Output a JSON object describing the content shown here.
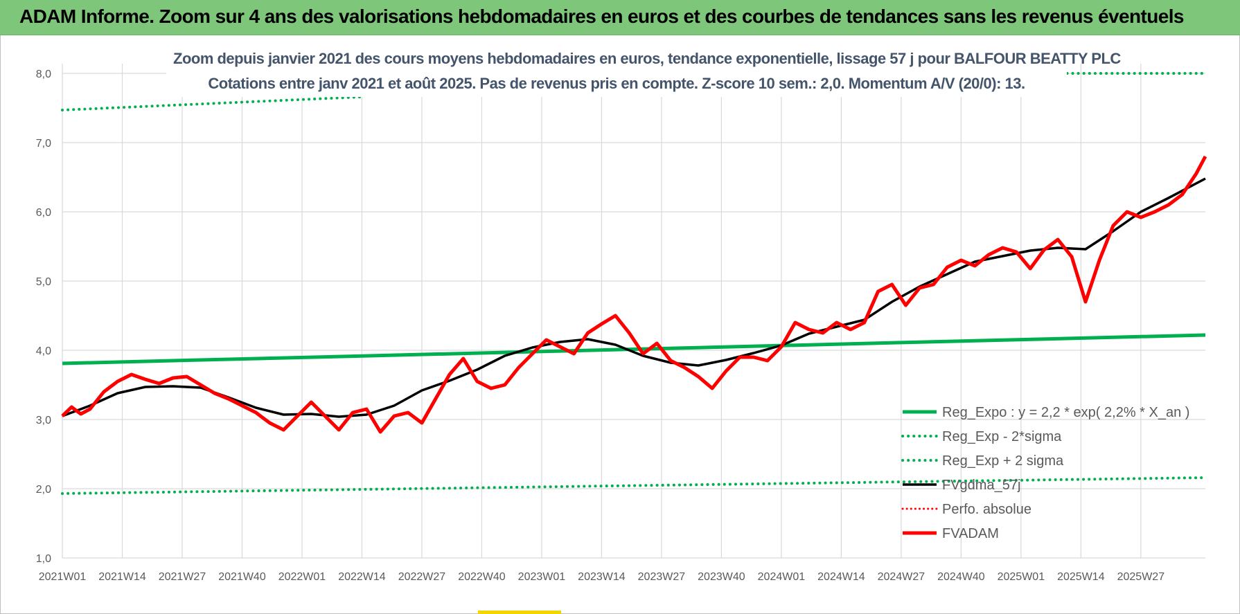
{
  "header": {
    "banner_title": "ADAM Informe. Zoom sur 4 ans des valorisations hebdomadaires en euros et des courbes de tendances sans les revenus éventuels"
  },
  "chart_data": {
    "type": "line",
    "title": "Zoom depuis janvier 2021 des cours moyens hebdomadaires en euros, tendance exponentielle, lissage 57 j pour BALFOUR BEATTY PLC",
    "subtitle": "Cotations entre janv 2021 et août 2025.  Pas de revenus pris en compte. Z-score 10 sem.: 2,0. Momentum A/V (20/0): 13.",
    "x_tick_labels": [
      "2021W01",
      "2021W14",
      "2021W27",
      "2021W40",
      "2022W01",
      "2022W14",
      "2022W27",
      "2022W40",
      "2023W01",
      "2023W14",
      "2023W27",
      "2023W40",
      "2024W01",
      "2024W14",
      "2024W27",
      "2024W40",
      "2025W01",
      "2025W14",
      "2025W27"
    ],
    "x_range_weeks": [
      0,
      248
    ],
    "y_ticks": [
      "1,0",
      "2,0",
      "3,0",
      "4,0",
      "5,0",
      "6,0",
      "7,0",
      "8,0"
    ],
    "ylim": [
      1.0,
      8.0
    ],
    "grid": true,
    "legend_position": "bottom-right",
    "colors": {
      "green": "#00b050",
      "black": "#000000",
      "red": "#ff0000",
      "grid": "#d9d9d9"
    },
    "series": [
      {
        "name": "Reg_Expo : y = 2,2 * exp( 2,2% *  X_an )",
        "style": "solid",
        "color": "#00b050",
        "x": [
          0,
          248
        ],
        "values": [
          3.81,
          4.22
        ]
      },
      {
        "name": "Reg_Exp - 2*sigma",
        "style": "dotted",
        "color": "#00b050",
        "x": [
          0,
          248
        ],
        "values": [
          1.93,
          2.16
        ]
      },
      {
        "name": "Reg_Exp + 2 sigma",
        "style": "dotted",
        "color": "#00b050",
        "x": [
          0,
          65,
          218,
          248
        ],
        "values": [
          7.47,
          7.66,
          8.0,
          8.0
        ],
        "visible_segments": [
          [
            0,
            65
          ],
          [
            218,
            248
          ]
        ]
      },
      {
        "name": "FVgdma_57j",
        "style": "solid",
        "color": "#000000",
        "x": [
          0,
          6,
          12,
          18,
          24,
          30,
          36,
          42,
          48,
          54,
          60,
          66,
          72,
          78,
          84,
          90,
          96,
          102,
          108,
          114,
          120,
          126,
          132,
          138,
          144,
          150,
          156,
          162,
          168,
          174,
          180,
          186,
          192,
          198,
          204,
          210,
          216,
          222,
          228,
          234,
          240,
          248
        ],
        "values": [
          3.05,
          3.2,
          3.38,
          3.47,
          3.48,
          3.46,
          3.32,
          3.17,
          3.07,
          3.08,
          3.04,
          3.07,
          3.2,
          3.42,
          3.56,
          3.72,
          3.92,
          4.04,
          4.12,
          4.16,
          4.08,
          3.92,
          3.82,
          3.78,
          3.86,
          3.96,
          4.07,
          4.24,
          4.34,
          4.44,
          4.7,
          4.92,
          5.1,
          5.28,
          5.36,
          5.44,
          5.48,
          5.46,
          5.72,
          6.0,
          6.2,
          6.48
        ]
      },
      {
        "name": "Perfo. absolue",
        "style": "dotted",
        "color": "#ff0000",
        "x": [],
        "values": []
      },
      {
        "name": "FVADAM",
        "style": "solid",
        "color": "#ff0000",
        "x": [
          0,
          2,
          4,
          6,
          9,
          12,
          15,
          18,
          21,
          24,
          27,
          30,
          33,
          36,
          39,
          42,
          45,
          48,
          51,
          54,
          57,
          60,
          63,
          66,
          69,
          72,
          75,
          78,
          81,
          84,
          87,
          90,
          93,
          96,
          99,
          102,
          105,
          108,
          111,
          114,
          117,
          120,
          123,
          126,
          129,
          132,
          135,
          138,
          141,
          144,
          147,
          150,
          153,
          156,
          159,
          162,
          165,
          168,
          171,
          174,
          177,
          180,
          183,
          186,
          189,
          192,
          195,
          198,
          201,
          204,
          207,
          210,
          213,
          216,
          219,
          222,
          225,
          228,
          231,
          234,
          237,
          240,
          243,
          246,
          248
        ],
        "values": [
          3.05,
          3.18,
          3.08,
          3.15,
          3.4,
          3.55,
          3.65,
          3.58,
          3.52,
          3.6,
          3.62,
          3.5,
          3.38,
          3.3,
          3.2,
          3.1,
          2.95,
          2.85,
          3.05,
          3.25,
          3.05,
          2.85,
          3.1,
          3.15,
          2.82,
          3.05,
          3.1,
          2.95,
          3.3,
          3.65,
          3.88,
          3.55,
          3.45,
          3.5,
          3.75,
          3.95,
          4.15,
          4.05,
          3.95,
          4.25,
          4.38,
          4.5,
          4.25,
          3.95,
          4.1,
          3.85,
          3.75,
          3.62,
          3.45,
          3.7,
          3.9,
          3.9,
          3.85,
          4.05,
          4.4,
          4.3,
          4.25,
          4.4,
          4.3,
          4.4,
          4.85,
          4.95,
          4.65,
          4.9,
          4.95,
          5.2,
          5.3,
          5.22,
          5.38,
          5.48,
          5.42,
          5.18,
          5.45,
          5.6,
          5.35,
          4.7,
          5.3,
          5.8,
          6.0,
          5.92,
          6.0,
          6.1,
          6.25,
          6.55,
          6.8
        ]
      }
    ]
  }
}
